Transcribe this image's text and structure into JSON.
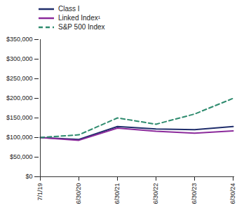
{
  "chart_data": {
    "type": "line",
    "categories": [
      "7/1/19",
      "6/30/20",
      "6/30/21",
      "6/30/22",
      "6/30/23",
      "6/30/24"
    ],
    "series": [
      {
        "name": "Class I",
        "color": "#1f2d6b",
        "line_style": "solid",
        "values": [
          100000,
          95000,
          128000,
          122000,
          120000,
          128000
        ]
      },
      {
        "name": "Linked Index¹",
        "color": "#8b2a9b",
        "line_style": "solid",
        "values": [
          100000,
          93000,
          124000,
          116000,
          111000,
          117000
        ]
      },
      {
        "name": "S&P 500 Index",
        "color": "#2e8b6e",
        "line_style": "dashed",
        "values": [
          100000,
          107000,
          150000,
          134000,
          160000,
          200000
        ]
      }
    ],
    "ylim": [
      0,
      350000
    ],
    "yticks": [
      {
        "value": 0,
        "label": "$0"
      },
      {
        "value": 50000,
        "label": "$50,000"
      },
      {
        "value": 100000,
        "label": "$100,000"
      },
      {
        "value": 150000,
        "label": "$150,000"
      },
      {
        "value": 200000,
        "label": "$200,000"
      },
      {
        "value": 250000,
        "label": "$250,000"
      },
      {
        "value": 300000,
        "label": "$300,000"
      },
      {
        "value": 350000,
        "label": "$350,000"
      }
    ],
    "grid": false,
    "legend": "top-left"
  }
}
